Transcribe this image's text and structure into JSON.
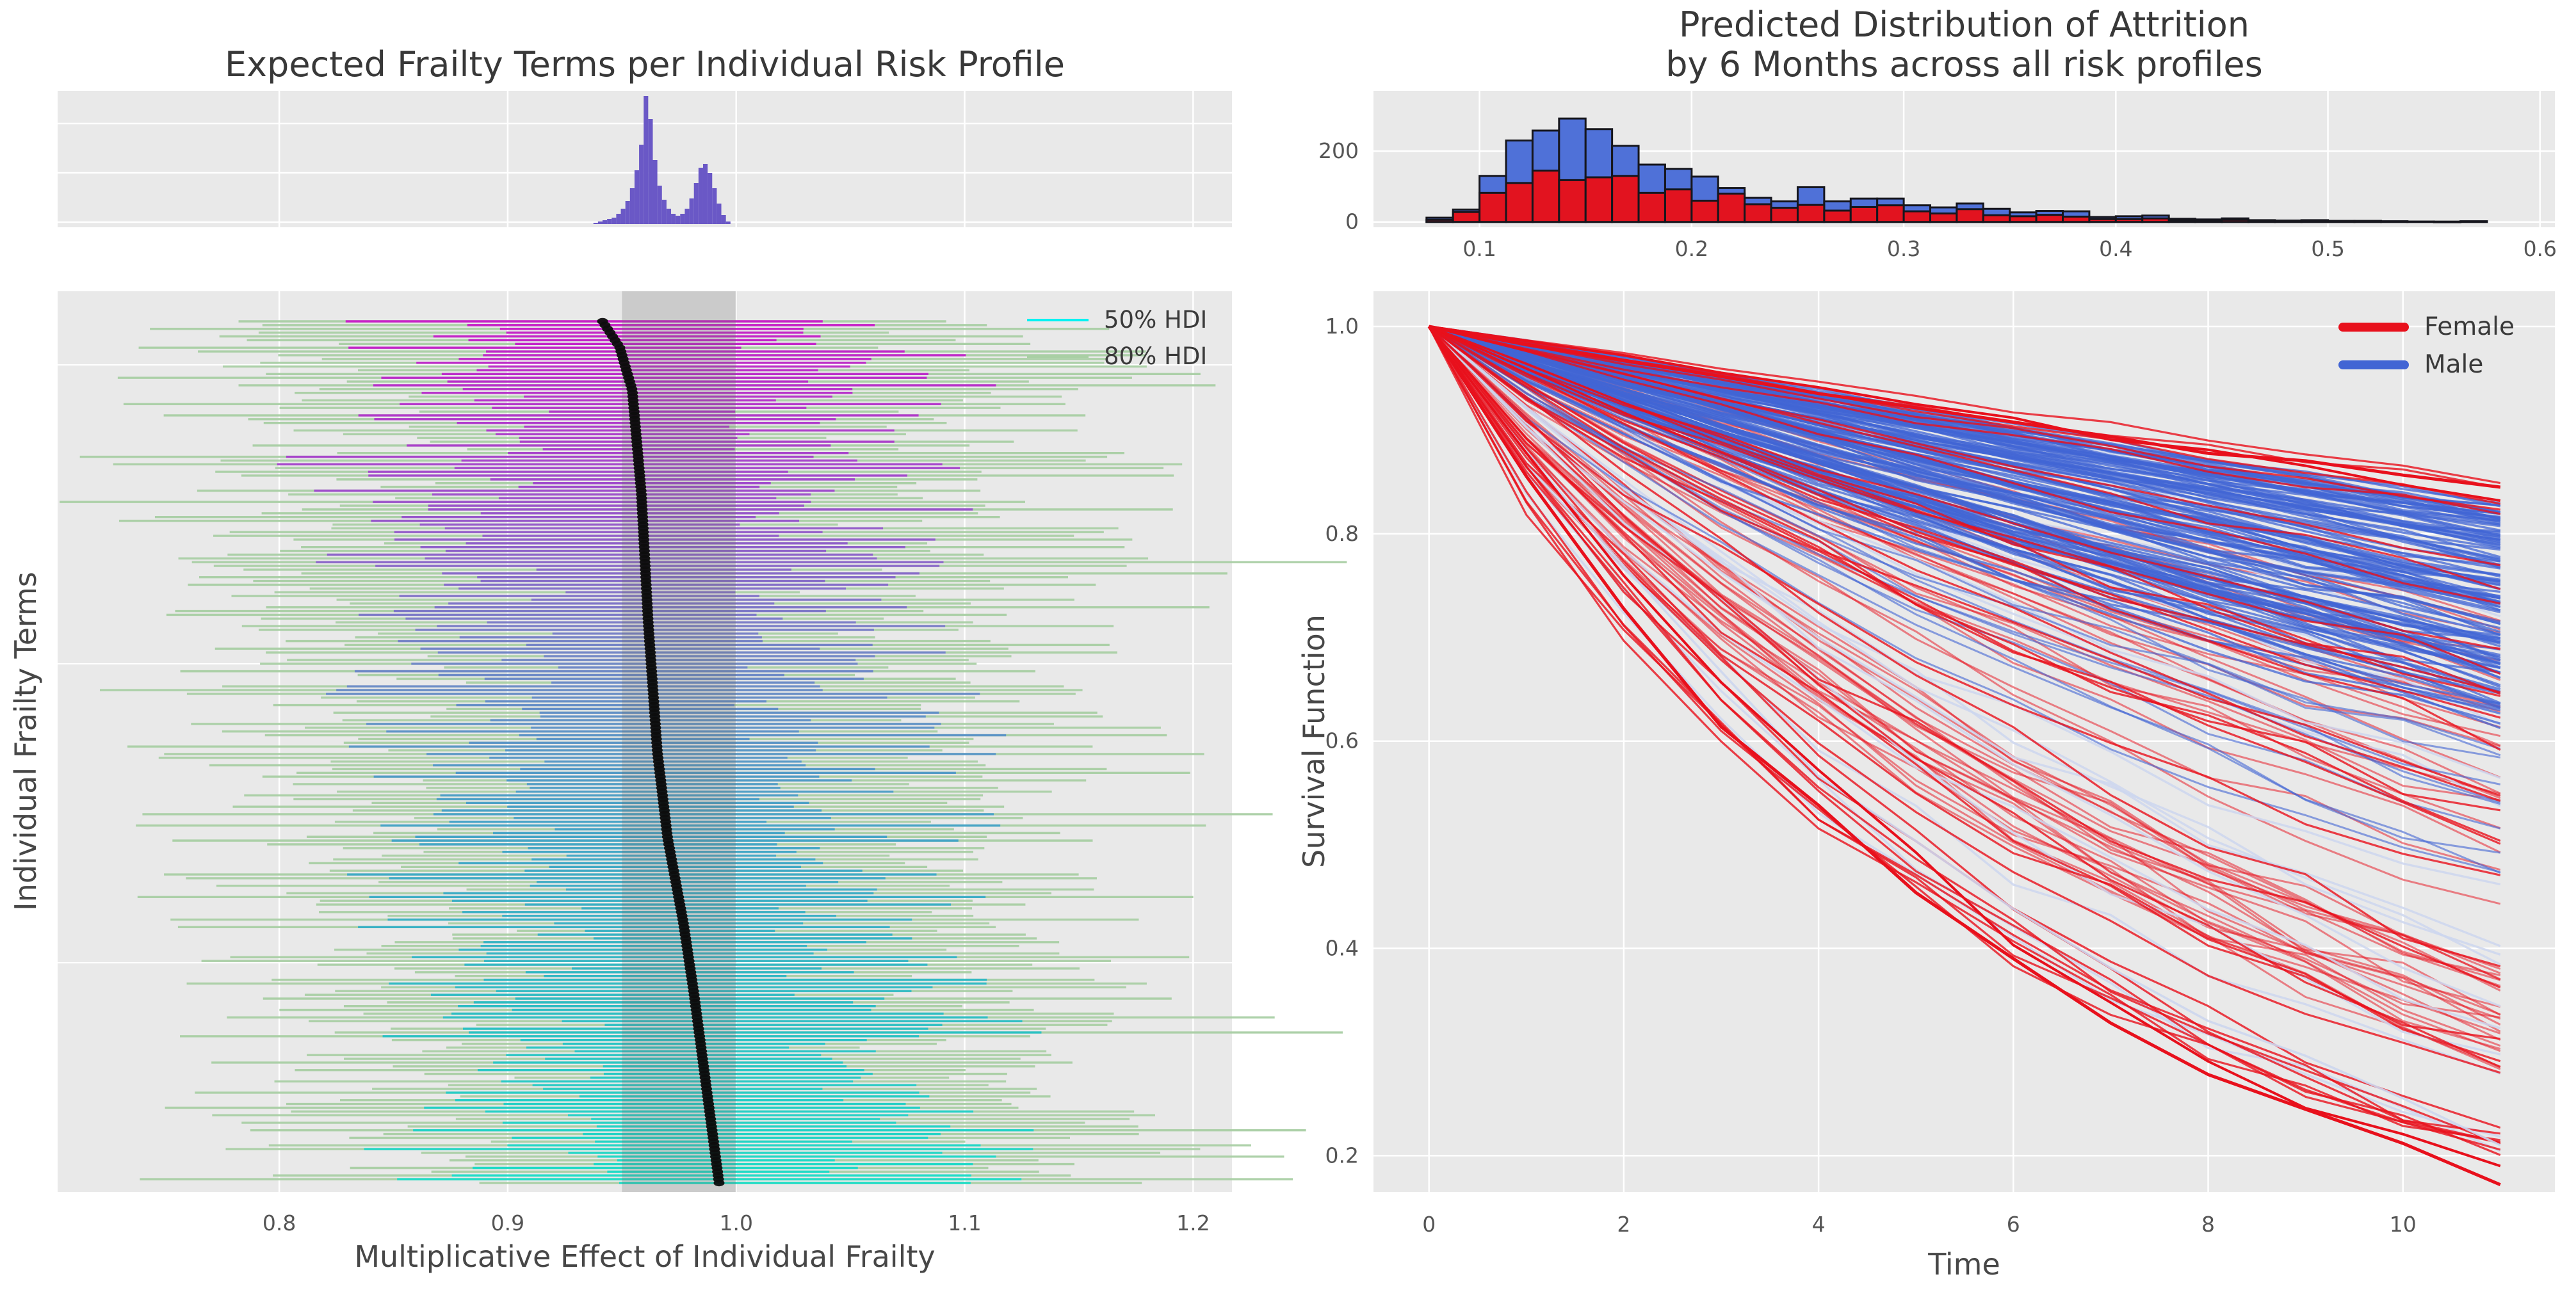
{
  "figure": {
    "background": "#ffffff",
    "panel_bg": "#e9e9e9",
    "grid_color": "#ffffff",
    "tick_color": "#555555",
    "text_color": "#3a3a3a"
  },
  "chart_data": [
    {
      "type": "forest",
      "title": "Expected Frailty Terms per Individual Risk Profile",
      "xlabel": "Multiplicative Effect of Individual Frailty",
      "ylabel": "Individual Frailty Terms",
      "xlim": [
        0.703,
        1.217
      ],
      "x_ticks": [
        0.8,
        0.9,
        1.0,
        1.1,
        1.2
      ],
      "x_tick_labels": [
        "0.8",
        "0.9",
        "1.0",
        "1.1",
        "1.2"
      ],
      "n_individuals": 230,
      "highlight_band": [
        0.95,
        1.0
      ],
      "band_color": "#6e6e6e",
      "legend": [
        {
          "label": "50% HDI",
          "color": "#00f2f2"
        },
        {
          "label": "80% HDI",
          "color": "#a9cfa4"
        }
      ],
      "mean_curve": {
        "fraction": [
          0,
          0.03,
          0.08,
          0.2,
          0.35,
          0.5,
          0.6,
          0.7,
          0.78,
          0.88,
          1
        ],
        "value": [
          0.9415,
          0.949,
          0.9545,
          0.9585,
          0.9615,
          0.9655,
          0.97,
          0.977,
          0.9815,
          0.9865,
          0.9925
        ]
      },
      "hdi50_halfwidth_range": [
        0.045,
        0.13
      ],
      "hdi80_halfwidth_extra_range": [
        0.035,
        0.11
      ],
      "gradient_stops": [
        [
          0,
          "#cb10cb"
        ],
        [
          0.18,
          "#a23ecf"
        ],
        [
          0.38,
          "#6f7fc9"
        ],
        [
          0.58,
          "#3f9fc9"
        ],
        [
          0.78,
          "#25b8c6"
        ],
        [
          1,
          "#14ddc9"
        ]
      ],
      "hdi80_color": "#a9cfa4",
      "dot_color": "#0d0d0d",
      "marginal_hist": {
        "bin_start": 0.9375,
        "bin_width": 0.002,
        "rel_heights": [
          0.01,
          0.02,
          0.03,
          0.04,
          0.05,
          0.08,
          0.12,
          0.18,
          0.28,
          0.42,
          0.62,
          1.0,
          0.82,
          0.5,
          0.3,
          0.19,
          0.12,
          0.08,
          0.065,
          0.08,
          0.12,
          0.2,
          0.32,
          0.44,
          0.47,
          0.4,
          0.28,
          0.16,
          0.07,
          0.02
        ],
        "color": "#6a58c6"
      }
    },
    {
      "type": "histogram-overlay",
      "title_line1": "Predicted Distribution of Attrition",
      "title_line2": "by 6 Months across all risk profiles",
      "xlim": [
        0.05,
        0.607
      ],
      "ylim": [
        -15,
        370
      ],
      "x_ticks": [
        0.1,
        0.2,
        0.3,
        0.4,
        0.5,
        0.6
      ],
      "x_tick_labels": [
        "0.1",
        "0.2",
        "0.3",
        "0.4",
        "0.5",
        "0.6"
      ],
      "y_ticks": [
        0,
        200
      ],
      "y_tick_labels": [
        "0",
        "200"
      ],
      "bin_start": 0.075,
      "bin_width": 0.0125,
      "edge_color": "#16161d",
      "series": [
        {
          "name": "Male",
          "color": "#4f71d8",
          "values": [
            12,
            35,
            130,
            230,
            258,
            292,
            262,
            215,
            162,
            150,
            128,
            96,
            68,
            58,
            98,
            58,
            66,
            66,
            47,
            41,
            52,
            37,
            27,
            31,
            30,
            14,
            16,
            18,
            9,
            7,
            10,
            5,
            4,
            5,
            3,
            3,
            2,
            1,
            1,
            2
          ]
        },
        {
          "name": "Female",
          "color": "#e2131f",
          "values": [
            6,
            28,
            82,
            110,
            145,
            118,
            126,
            130,
            82,
            92,
            60,
            80,
            50,
            40,
            48,
            32,
            42,
            47,
            30,
            24,
            36,
            19,
            16,
            20,
            15,
            8,
            8,
            10,
            5,
            3,
            6,
            2,
            2,
            3,
            1,
            2,
            1,
            1,
            0,
            1
          ]
        }
      ]
    },
    {
      "type": "line-ensemble",
      "xlabel": "Time",
      "ylabel": "Survival Function",
      "xlim": [
        -0.57,
        11.56
      ],
      "ylim": [
        0.165,
        1.034
      ],
      "t_end": 11,
      "x_ticks": [
        0,
        2,
        4,
        6,
        8,
        10
      ],
      "x_tick_labels": [
        "0",
        "2",
        "4",
        "6",
        "8",
        "10"
      ],
      "y_ticks": [
        1.0,
        0.8,
        0.6,
        0.4,
        0.2
      ],
      "y_tick_labels": [
        "1.0",
        "0.8",
        "0.6",
        "0.4",
        "0.2"
      ],
      "legend": [
        {
          "label": "Female",
          "color": "#e8101c"
        },
        {
          "label": "Male",
          "color": "#4265d4"
        }
      ],
      "groups": [
        {
          "name": "female-back",
          "color": "#e8101c",
          "n": 45,
          "final_range": [
            0.28,
            0.72
          ],
          "bias": 1.0,
          "width": 3.0,
          "opacity": 0.5
        },
        {
          "name": "pale-blue",
          "color": "#ccd6ee",
          "n": 22,
          "final_range": [
            0.2,
            0.82
          ],
          "bias": 1.0,
          "width": 3.4,
          "opacity": 0.85
        },
        {
          "name": "male",
          "color": "#4265d4",
          "n": 130,
          "final_range": [
            0.6,
            0.83
          ],
          "bias": 0.75,
          "width": 3.4,
          "opacity": 0.75
        },
        {
          "name": "male-low",
          "color": "#4265d4",
          "n": 10,
          "final_range": [
            0.45,
            0.6
          ],
          "bias": 1.0,
          "width": 3.0,
          "opacity": 0.6
        },
        {
          "name": "female-front",
          "color": "#e8101c",
          "n": 35,
          "final_range": [
            0.2,
            0.85
          ],
          "bias": 1.3,
          "width": 3.2,
          "opacity": 0.8
        }
      ],
      "boundary_curves": [
        {
          "color": "#e8101c",
          "final": 0.845,
          "width": 5,
          "opacity": 1
        },
        {
          "color": "#e8101c",
          "final": 0.832,
          "width": 4,
          "opacity": 1
        },
        {
          "color": "#ccd6ee",
          "final": 0.21,
          "width": 3.5,
          "opacity": 0.9
        },
        {
          "color": "#e8101c",
          "final": 0.19,
          "width": 4,
          "opacity": 1
        },
        {
          "color": "#e8101c",
          "final": 0.172,
          "width": 5,
          "opacity": 1
        }
      ]
    }
  ]
}
